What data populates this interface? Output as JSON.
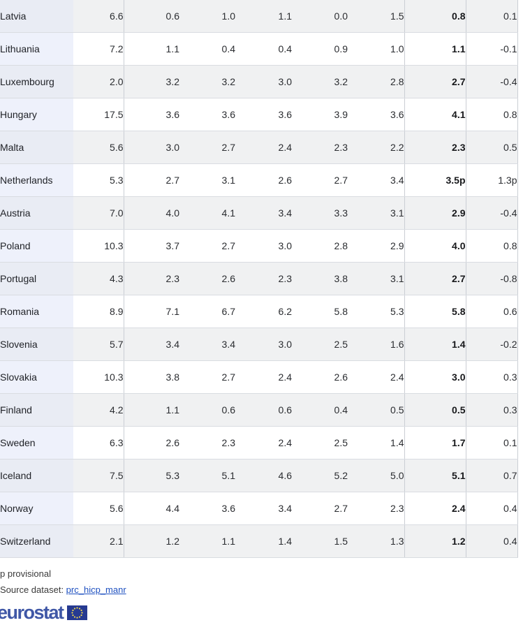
{
  "chart_data": {
    "type": "table",
    "description": "Annual HICP inflation rates (%) by country; last monthly column emphasized; trailing column is change",
    "emphasized_column_index": 6,
    "rows": [
      {
        "country": "Latvia",
        "values": [
          "6.6",
          "0.6",
          "1.0",
          "1.1",
          "0.0",
          "1.5",
          "0.8",
          "0.1"
        ]
      },
      {
        "country": "Lithuania",
        "values": [
          "7.2",
          "1.1",
          "0.4",
          "0.4",
          "0.9",
          "1.0",
          "1.1",
          "-0.1"
        ]
      },
      {
        "country": "Luxembourg",
        "values": [
          "2.0",
          "3.2",
          "3.2",
          "3.0",
          "3.2",
          "2.8",
          "2.7",
          "-0.4"
        ]
      },
      {
        "country": "Hungary",
        "values": [
          "17.5",
          "3.6",
          "3.6",
          "3.6",
          "3.9",
          "3.6",
          "4.1",
          "0.8"
        ]
      },
      {
        "country": "Malta",
        "values": [
          "5.6",
          "3.0",
          "2.7",
          "2.4",
          "2.3",
          "2.2",
          "2.3",
          "0.5"
        ]
      },
      {
        "country": "Netherlands",
        "values": [
          "5.3",
          "2.7",
          "3.1",
          "2.6",
          "2.7",
          "3.4",
          "3.5p",
          "1.3p"
        ]
      },
      {
        "country": "Austria",
        "values": [
          "7.0",
          "4.0",
          "4.1",
          "3.4",
          "3.3",
          "3.1",
          "2.9",
          "-0.4"
        ]
      },
      {
        "country": "Poland",
        "values": [
          "10.3",
          "3.7",
          "2.7",
          "3.0",
          "2.8",
          "2.9",
          "4.0",
          "0.8"
        ]
      },
      {
        "country": "Portugal",
        "values": [
          "4.3",
          "2.3",
          "2.6",
          "2.3",
          "3.8",
          "3.1",
          "2.7",
          "-0.8"
        ]
      },
      {
        "country": "Romania",
        "values": [
          "8.9",
          "7.1",
          "6.7",
          "6.2",
          "5.8",
          "5.3",
          "5.8",
          "0.6"
        ]
      },
      {
        "country": "Slovenia",
        "values": [
          "5.7",
          "3.4",
          "3.4",
          "3.0",
          "2.5",
          "1.6",
          "1.4",
          "-0.2"
        ]
      },
      {
        "country": "Slovakia",
        "values": [
          "10.3",
          "3.8",
          "2.7",
          "2.4",
          "2.6",
          "2.4",
          "3.0",
          "0.3"
        ]
      },
      {
        "country": "Finland",
        "values": [
          "4.2",
          "1.1",
          "0.6",
          "0.6",
          "0.4",
          "0.5",
          "0.5",
          "0.3"
        ]
      },
      {
        "country": "Sweden",
        "values": [
          "6.3",
          "2.6",
          "2.3",
          "2.4",
          "2.5",
          "1.4",
          "1.7",
          "0.1"
        ]
      },
      {
        "country": "Iceland",
        "values": [
          "7.5",
          "5.3",
          "5.1",
          "4.6",
          "5.2",
          "5.0",
          "5.1",
          "0.7"
        ]
      },
      {
        "country": "Norway",
        "values": [
          "5.6",
          "4.4",
          "3.6",
          "3.4",
          "2.7",
          "2.3",
          "2.4",
          "0.4"
        ]
      },
      {
        "country": "Switzerland",
        "values": [
          "2.1",
          "1.2",
          "1.1",
          "1.4",
          "1.5",
          "1.3",
          "1.2",
          "0.4"
        ]
      }
    ]
  },
  "footer": {
    "provisional_note": "p provisional",
    "source_label": "Source dataset: ",
    "source_link": "prc_hicp_manr",
    "logo_text": "eurostat"
  },
  "colors": {
    "link": "#1e50c0",
    "logo_text": "#3f57a6",
    "flag_background": "#263a91",
    "flag_stars": "#f4d94f",
    "row_stripe": "#f0f1f2",
    "country_cell_tint": "#eef1fb"
  }
}
